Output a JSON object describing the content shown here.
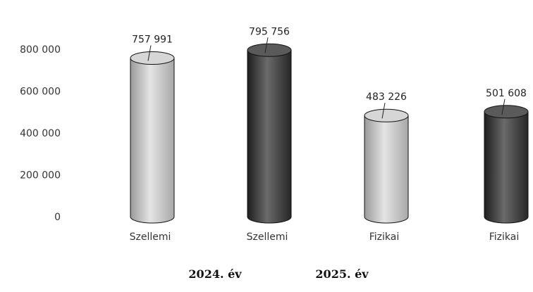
{
  "chart_data": {
    "type": "bar",
    "categories": [
      "Szellemi",
      "Szellemi",
      "Fizikai",
      "Fizikai"
    ],
    "values": [
      757991,
      795756,
      483226,
      501608
    ],
    "data_labels": [
      "757 991",
      "795 756",
      "483 226",
      "501 608"
    ],
    "bar_series": [
      "2024. év",
      "2025. év",
      "2024. év",
      "2025. év"
    ],
    "series": [
      {
        "name": "2024. év",
        "color": "#c8c8c8"
      },
      {
        "name": "2025. év",
        "color": "#4a4a4a"
      }
    ],
    "yticks": [
      0,
      200000,
      400000,
      600000,
      800000
    ],
    "ytick_labels": [
      "0",
      "200 000",
      "400 000",
      "600 000",
      "800 000"
    ],
    "ylim": [
      0,
      800000
    ],
    "grid": false,
    "legend_position": "bottom",
    "bar_shape": "cylinder"
  }
}
